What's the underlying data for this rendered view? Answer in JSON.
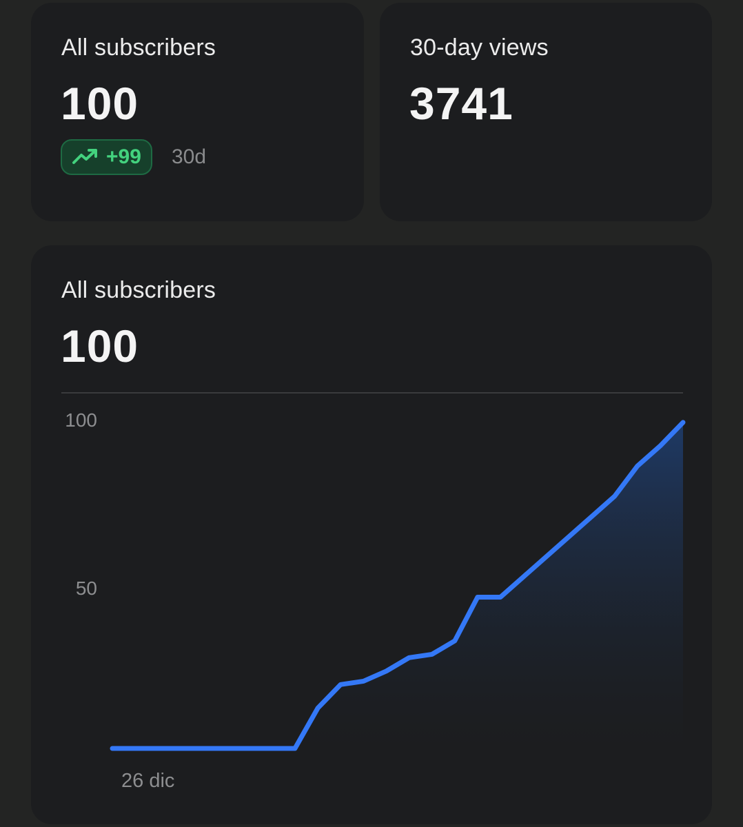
{
  "cards": {
    "subscribers": {
      "label": "All subscribers",
      "value": "100",
      "delta": "+99",
      "delta_period": "30d",
      "delta_icon": "trending-up-icon",
      "delta_color": "#43d27e"
    },
    "views": {
      "label": "30-day views",
      "value": "3741"
    }
  },
  "chart_card": {
    "label": "All subscribers",
    "value": "100"
  },
  "chart_data": {
    "type": "area",
    "title": "All subscribers",
    "xlabel": "",
    "ylabel": "",
    "ylim": [
      2,
      100
    ],
    "yticks": [
      100,
      50
    ],
    "x_tick_labels": [
      "26 dic"
    ],
    "grid": false,
    "color": "#3478f6",
    "series": [
      {
        "values": [
          2,
          2,
          2,
          2,
          2,
          2,
          2,
          2,
          2,
          14,
          21,
          22,
          25,
          29,
          30,
          34,
          47,
          47,
          53,
          59,
          65,
          71,
          77,
          86,
          92,
          99
        ]
      }
    ]
  }
}
